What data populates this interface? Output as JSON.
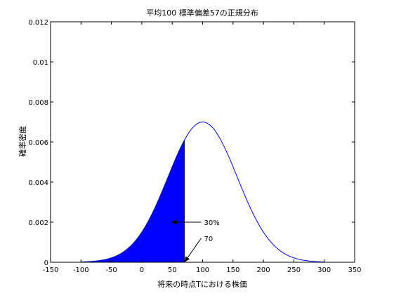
{
  "chart_data": {
    "type": "area",
    "title": "平均100 標準偏差57の正規分布",
    "xlabel": "将来の時点Tにおける株価",
    "ylabel": "確率密度",
    "xlim": [
      -150,
      350
    ],
    "ylim": [
      0,
      0.012
    ],
    "xticks": [
      -150,
      -100,
      -50,
      0,
      50,
      100,
      150,
      200,
      250,
      300,
      350
    ],
    "xtick_labels": [
      "-150",
      "-100",
      "-50",
      "0",
      "50",
      "100",
      "150",
      "200",
      "250",
      "300",
      "350"
    ],
    "yticks": [
      0,
      0.002,
      0.004,
      0.006,
      0.008,
      0.01,
      0.012
    ],
    "ytick_labels": [
      "0",
      "0.002",
      "0.004",
      "0.006",
      "0.008",
      "0.01",
      "0.012"
    ],
    "grid": false,
    "distribution": {
      "mean": 100,
      "std": 57
    },
    "series": [
      {
        "line_x": [
          -100,
          -75,
          -50,
          -25,
          0,
          25,
          50,
          75,
          100,
          125,
          150,
          175,
          200,
          225,
          250,
          275,
          300
        ],
        "line_y": [
          0.0,
          0.0001,
          0.0002,
          0.0006,
          0.0014,
          0.0029,
          0.0048,
          0.0063,
          0.007,
          0.0063,
          0.0048,
          0.0029,
          0.0014,
          0.0006,
          0.0002,
          0.0001,
          0.0
        ],
        "color": "#0000ff"
      }
    ],
    "shaded_region": {
      "from": -100,
      "to": 70,
      "color": "#0000ff",
      "percent": 30
    },
    "annotations": [
      {
        "text": "30%",
        "point_x": 48,
        "point_y": 0.002,
        "text_x": 100,
        "text_y": 0.002
      },
      {
        "text": "70",
        "point_x": 70,
        "point_y": 0,
        "text_x": 100,
        "text_y": 0.0012
      }
    ]
  }
}
